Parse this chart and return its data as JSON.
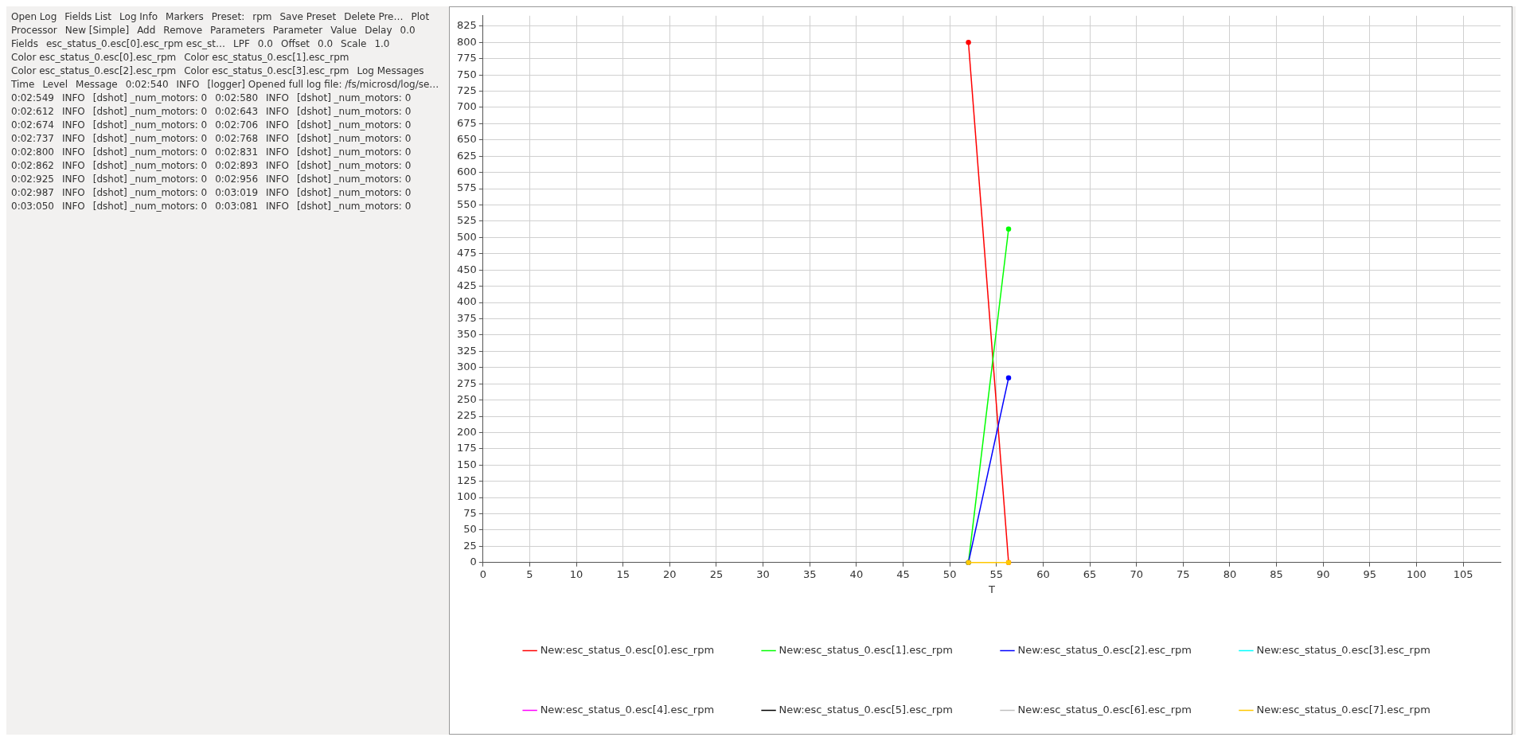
{
  "chart_data": {
    "type": "line",
    "xlabel": "T",
    "xlim": [
      0,
      109
    ],
    "xticks": [
      0,
      5,
      10,
      15,
      20,
      25,
      30,
      35,
      40,
      45,
      50,
      55,
      60,
      65,
      70,
      75,
      80,
      85,
      90,
      95,
      100,
      105
    ],
    "ylim": [
      0,
      841
    ],
    "yticks": [
      0,
      25,
      50,
      75,
      100,
      125,
      150,
      175,
      200,
      225,
      250,
      275,
      300,
      325,
      350,
      375,
      400,
      425,
      450,
      475,
      500,
      525,
      550,
      575,
      600,
      625,
      650,
      675,
      700,
      725,
      750,
      775,
      800,
      825
    ],
    "x": [
      52.0,
      56.3
    ],
    "grid": true,
    "legend": "bottom",
    "marker": "circle",
    "line_style": "solid",
    "series": [
      {
        "name": "New:esc_status_0.esc[0].esc_rpm",
        "color": "#ff0000",
        "values": [
          800,
          0
        ]
      },
      {
        "name": "New:esc_status_0.esc[1].esc_rpm",
        "color": "#00ff00",
        "values": [
          0,
          513
        ]
      },
      {
        "name": "New:esc_status_0.esc[2].esc_rpm",
        "color": "#0000ff",
        "values": [
          0,
          284
        ]
      },
      {
        "name": "New:esc_status_0.esc[3].esc_rpm",
        "color": "#00ffff",
        "values": [
          null,
          null
        ]
      },
      {
        "name": "New:esc_status_0.esc[4].esc_rpm",
        "color": "#ff00ff",
        "values": [
          null,
          null
        ]
      },
      {
        "name": "New:esc_status_0.esc[5].esc_rpm",
        "color": "#000000",
        "values": [
          null,
          null
        ]
      },
      {
        "name": "New:esc_status_0.esc[6].esc_rpm",
        "color": "#c0c0c0",
        "values": [
          null,
          null
        ]
      },
      {
        "name": "New:esc_status_0.esc[7].esc_rpm",
        "color": "#ffc800",
        "values": [
          0,
          0
        ]
      }
    ],
    "annotations": [
      "Open Log",
      "Fields List",
      "Log Info",
      "Markers",
      "Preset:",
      "rpm",
      "Save Preset",
      "Delete Pre…",
      "Plot",
      "Processor",
      "New [Simple]",
      "Add",
      "Remove",
      "Parameters",
      "Parameter",
      "Value",
      "Delay",
      "0.0",
      "Fields",
      "esc_status_0.esc[0].esc_rpm esc_st…",
      "LPF",
      "0.0",
      "Offset",
      "0.0",
      "Scale",
      "1.0",
      "Color esc_status_0.esc[0].esc_rpm",
      "Color esc_status_0.esc[1].esc_rpm",
      "Color esc_status_0.esc[2].esc_rpm",
      "Color esc_status_0.esc[3].esc_rpm",
      "Log Messages",
      "Time",
      "Level",
      "Message",
      "0:02:540",
      "INFO",
      "[logger] Opened full log file: /fs/microsd/log/se…",
      "0:02:549",
      "INFO",
      "[dshot] _num_motors: 0",
      "0:02:580",
      "INFO",
      "[dshot] _num_motors: 0",
      "0:02:612",
      "INFO",
      "[dshot] _num_motors: 0",
      "0:02:643",
      "INFO",
      "[dshot] _num_motors: 0",
      "0:02:674",
      "INFO",
      "[dshot] _num_motors: 0",
      "0:02:706",
      "INFO",
      "[dshot] _num_motors: 0",
      "0:02:737",
      "INFO",
      "[dshot] _num_motors: 0",
      "0:02:768",
      "INFO",
      "[dshot] _num_motors: 0",
      "0:02:800",
      "INFO",
      "[dshot] _num_motors: 0",
      "0:02:831",
      "INFO",
      "[dshot] _num_motors: 0",
      "0:02:862",
      "INFO",
      "[dshot] _num_motors: 0",
      "0:02:893",
      "INFO",
      "[dshot] _num_motors: 0",
      "0:02:925",
      "INFO",
      "[dshot] _num_motors: 0",
      "0:02:956",
      "INFO",
      "[dshot] _num_motors: 0",
      "0:02:987",
      "INFO",
      "[dshot] _num_motors: 0",
      "0:03:019",
      "INFO",
      "[dshot] _num_motors: 0",
      "0:03:050",
      "INFO",
      "[dshot] _num_motors: 0",
      "0:03:081",
      "INFO",
      "[dshot] _num_motors: 0"
    ]
  }
}
